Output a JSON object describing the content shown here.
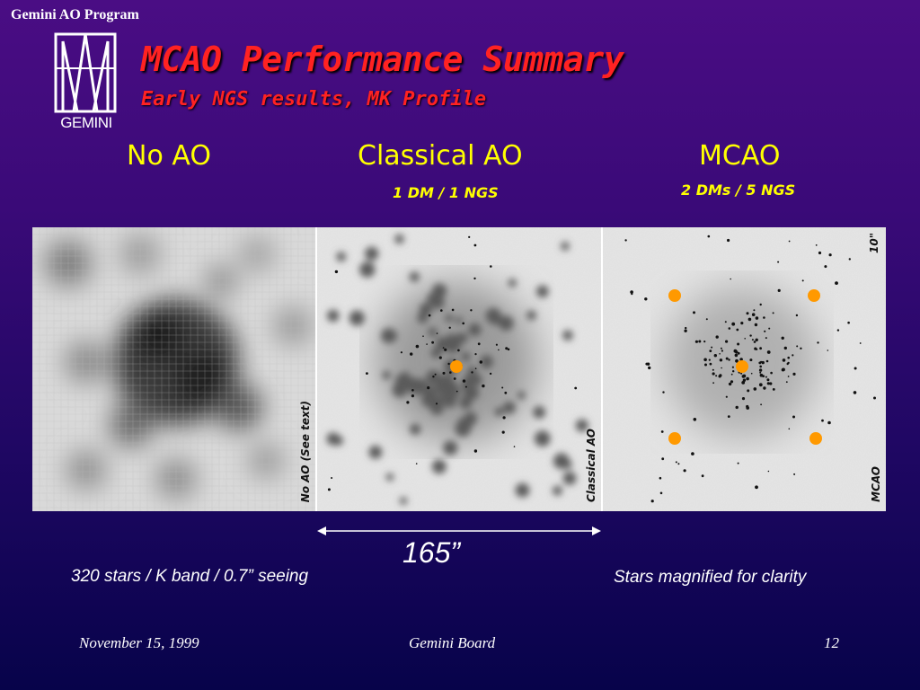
{
  "header": {
    "program": "Gemini AO Program"
  },
  "logo": {
    "word": "GEMINI",
    "icon": "gemini-telescope-logo-icon"
  },
  "title": "MCAO Performance Summary",
  "subtitle": "Early NGS results, MK Profile",
  "columns": [
    {
      "label": "No AO",
      "sub": ""
    },
    {
      "label": "Classical AO",
      "sub": "1 DM / 1 NGS"
    },
    {
      "label": "MCAO",
      "sub": "2 DMs / 5 NGS"
    }
  ],
  "panels": [
    {
      "tag": "No AO (See text)"
    },
    {
      "tag": "Classical AO"
    },
    {
      "tag": "MCAO",
      "scale": "10\""
    }
  ],
  "scale_label": "165”",
  "notes": {
    "left": "320 stars / K band / 0.7” seeing",
    "right": "Stars magnified for clarity"
  },
  "footer": {
    "date": "November 15, 1999",
    "venue": "Gemini Board",
    "page": "12"
  },
  "colors": {
    "title": "#ff2222",
    "column_labels": "#ffff00",
    "guide_star": "#ff9900"
  }
}
